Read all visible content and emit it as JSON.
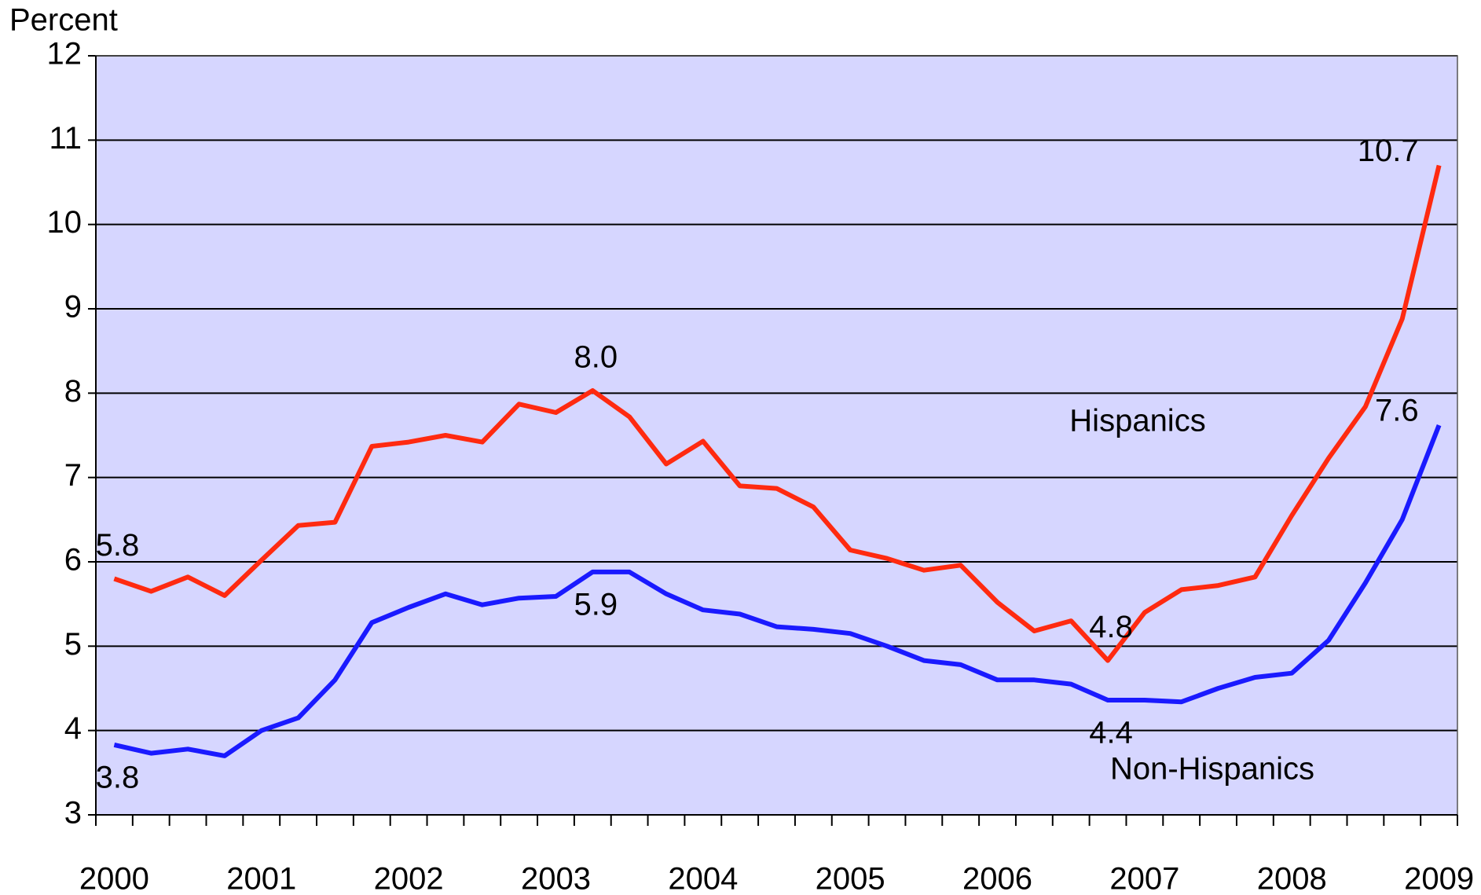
{
  "chart_data": {
    "type": "line",
    "y_axis_label": "Percent",
    "categories": [
      "2000",
      null,
      null,
      null,
      "2001",
      null,
      null,
      null,
      "2002",
      null,
      null,
      null,
      "2003",
      null,
      null,
      null,
      "2004",
      null,
      null,
      null,
      "2005",
      null,
      null,
      null,
      "2006",
      null,
      null,
      null,
      "2007",
      null,
      null,
      null,
      "2008",
      null,
      null,
      null,
      "2009"
    ],
    "series": [
      {
        "name": "Hispanics",
        "color": "#ff2a10",
        "values": [
          5.8,
          5.65,
          5.82,
          5.6,
          6.02,
          6.43,
          6.47,
          7.37,
          7.42,
          7.5,
          7.42,
          7.87,
          7.77,
          8.03,
          7.72,
          7.16,
          7.43,
          6.9,
          6.87,
          6.65,
          6.14,
          6.04,
          5.9,
          5.96,
          5.52,
          5.18,
          5.3,
          4.83,
          5.4,
          5.67,
          5.72,
          5.82,
          6.55,
          7.23,
          7.84,
          8.88,
          10.7
        ],
        "value_labels": [
          "5.8",
          null,
          null,
          null,
          null,
          null,
          null,
          null,
          null,
          null,
          null,
          null,
          null,
          "8.0",
          null,
          null,
          null,
          null,
          null,
          null,
          null,
          null,
          null,
          null,
          null,
          null,
          null,
          "4.8",
          null,
          null,
          null,
          null,
          null,
          null,
          null,
          null,
          "10.7"
        ]
      },
      {
        "name": "Non-Hispanics",
        "color": "#1a1aff",
        "values": [
          3.83,
          3.73,
          3.78,
          3.7,
          4.0,
          4.15,
          4.6,
          5.28,
          5.46,
          5.62,
          5.49,
          5.57,
          5.59,
          5.88,
          5.88,
          5.62,
          5.43,
          5.38,
          5.23,
          5.2,
          5.15,
          5.0,
          4.83,
          4.78,
          4.6,
          4.6,
          4.55,
          4.36,
          4.36,
          4.34,
          4.5,
          4.63,
          4.68,
          5.07,
          5.75,
          6.5,
          7.62
        ],
        "value_labels": [
          "3.8",
          null,
          null,
          null,
          null,
          null,
          null,
          null,
          null,
          null,
          null,
          null,
          null,
          "5.9",
          null,
          null,
          null,
          null,
          null,
          null,
          null,
          null,
          null,
          null,
          null,
          null,
          null,
          "4.4",
          null,
          null,
          null,
          null,
          null,
          null,
          null,
          null,
          "7.6"
        ]
      }
    ],
    "ylim": [
      3,
      12
    ],
    "yticks": [
      3,
      4,
      5,
      6,
      7,
      8,
      9,
      10,
      11,
      12
    ],
    "grid": true,
    "plot_background": "#d6d6ff"
  }
}
